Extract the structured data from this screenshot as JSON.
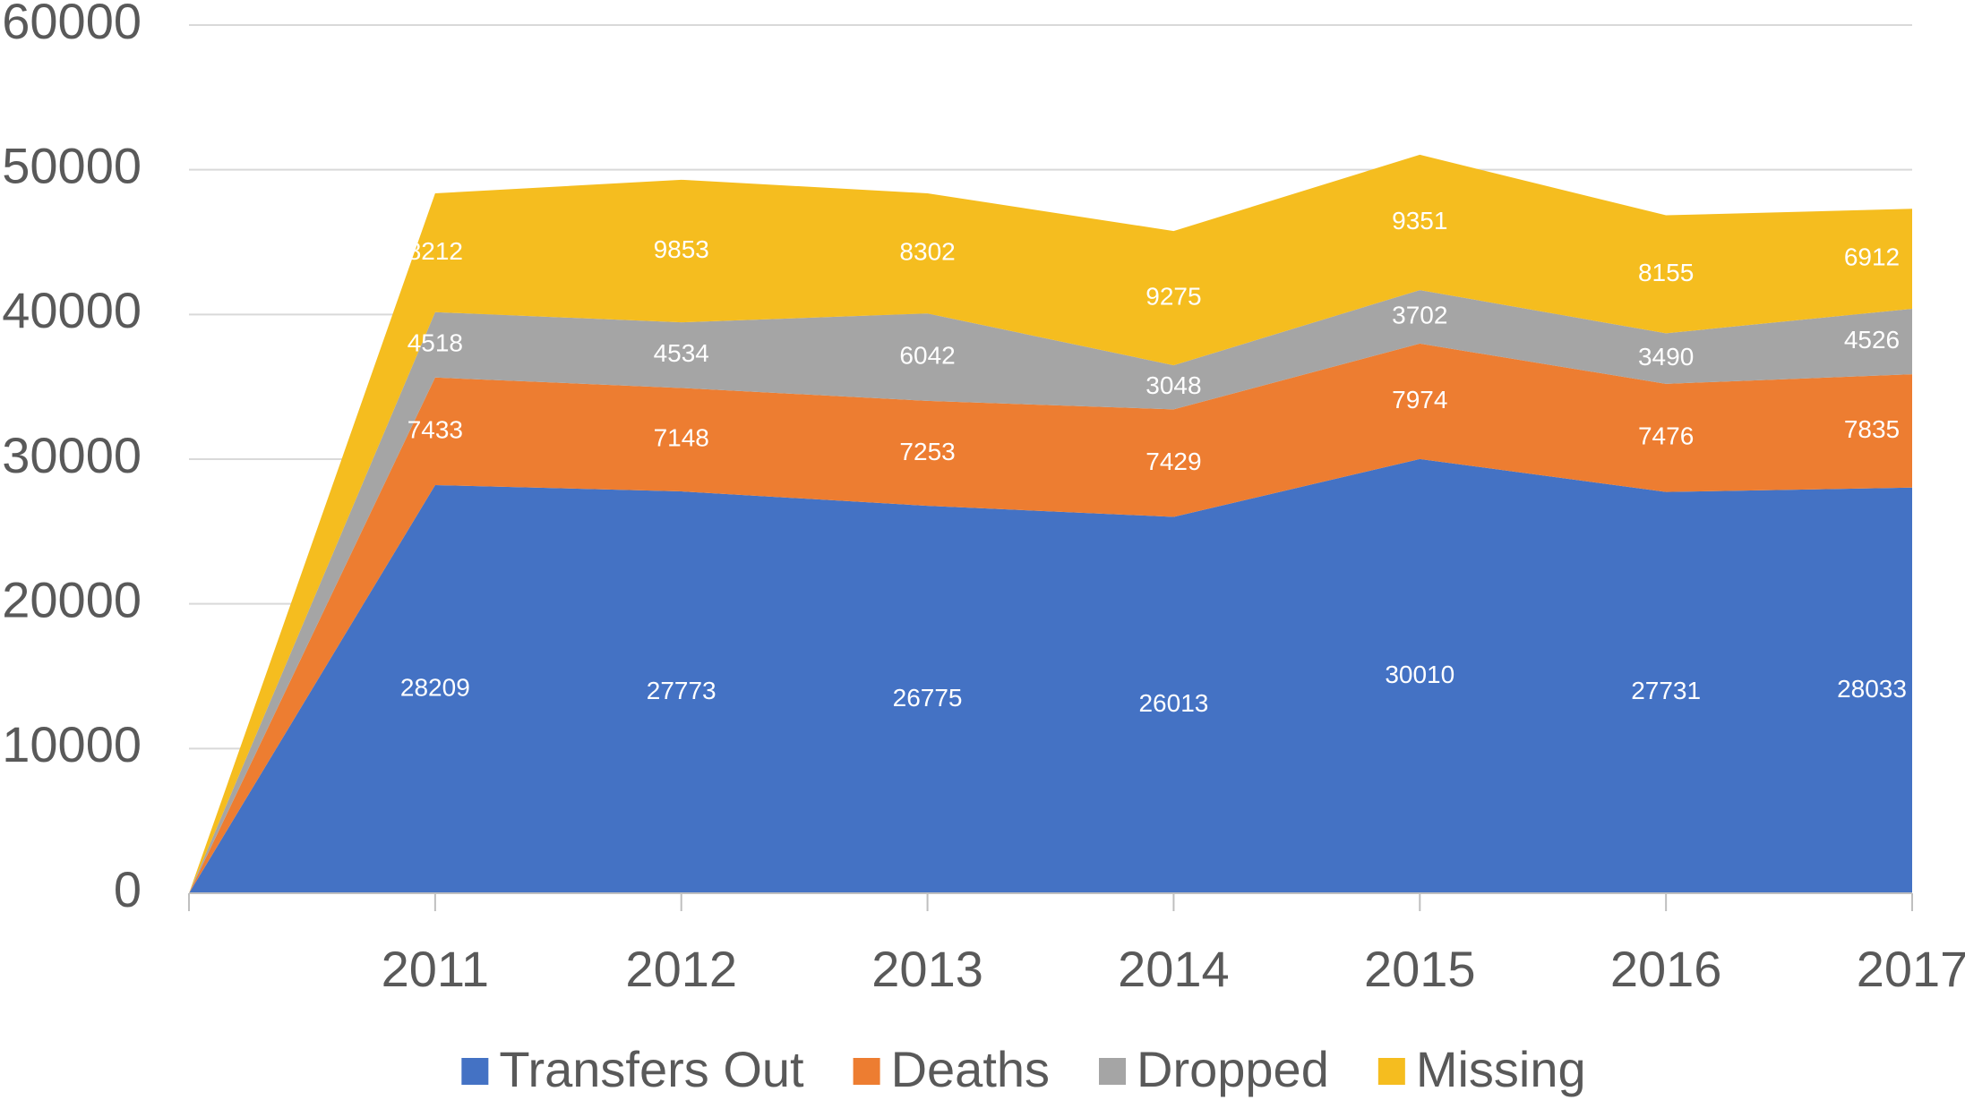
{
  "chart_data": {
    "type": "stacked_area",
    "categories": [
      null,
      "2011",
      "2012",
      "2013",
      "2014",
      "2015",
      "2016",
      "2017"
    ],
    "series": [
      {
        "name": "Transfers Out",
        "color": "#4472c4",
        "values": [
          0,
          28209,
          27773,
          26775,
          26013,
          30010,
          27731,
          28033
        ]
      },
      {
        "name": "Deaths",
        "color": "#ed7d31",
        "values": [
          0,
          7433,
          7148,
          7253,
          7429,
          7974,
          7476,
          7835
        ]
      },
      {
        "name": "Dropped",
        "color": "#a5a5a5",
        "values": [
          0,
          4518,
          4534,
          6042,
          3048,
          3702,
          3490,
          4526
        ]
      },
      {
        "name": "Missing",
        "color": "#f5bd1f",
        "values": [
          0,
          8212,
          9853,
          8302,
          9275,
          9351,
          8155,
          6912
        ]
      }
    ],
    "ylim": [
      0,
      60000
    ],
    "yticks": [
      0,
      10000,
      20000,
      30000,
      40000,
      50000,
      60000
    ],
    "grid": true,
    "data_labels": true,
    "legend": "bottom"
  }
}
